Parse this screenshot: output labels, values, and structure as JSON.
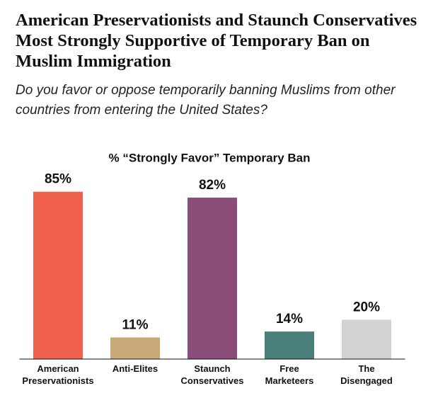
{
  "chart_data": {
    "type": "bar",
    "title": "American Preservationists and Staunch Conservatives Most Strongly Supportive of Temporary Ban on Muslim Immigration",
    "subtitle": "Do you favor or oppose temporarily banning Muslims from other countries from entering the United States?",
    "chart_title": "% “Strongly Favor” Temporary Ban",
    "categories": [
      "American Preservationists",
      "Anti-Elites",
      "Staunch Conservatives",
      "Free Marketeers",
      "The Disengaged"
    ],
    "values": [
      85,
      11,
      82,
      14,
      20
    ],
    "value_labels": [
      "85%",
      "11%",
      "82%",
      "14%",
      "20%"
    ],
    "colors": [
      "#ef604d",
      "#caa978",
      "#8a4c78",
      "#4a7f7a",
      "#d2d2d2"
    ],
    "ylim": [
      0,
      100
    ]
  }
}
